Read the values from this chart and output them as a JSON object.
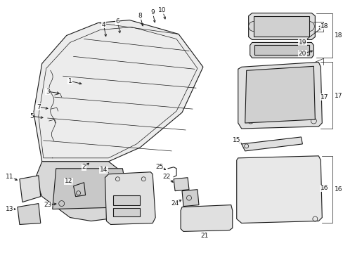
{
  "background_color": "#ffffff",
  "line_color": "#1a1a1a",
  "fig_w": 4.89,
  "fig_h": 3.6,
  "dpi": 100
}
